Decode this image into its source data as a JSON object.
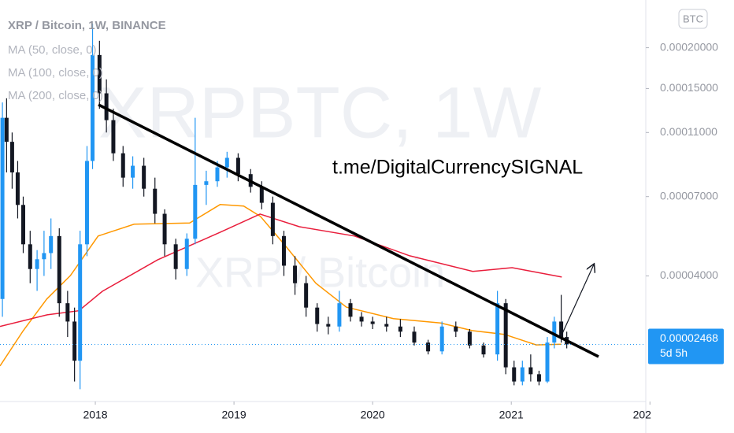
{
  "chart_data": {
    "type": "candlestick",
    "title": "XRP / Bitcoin, 1W, BINANCE",
    "watermark": "XRPBTC, 1W",
    "watermark_sub": "XRP / Bitcoin",
    "annotation": "t.me/DigitalCurrencySIGNAL",
    "currency": "BTC",
    "log_scale": true,
    "xlim": [
      2017.3125,
      2021.97
    ],
    "xticks": [
      2018,
      2019,
      2020,
      2021,
      {
        "value": 2022,
        "label": "202"
      }
    ],
    "ylim": [
      1.65e-05,
      0.00028
    ],
    "yticks": [
      {
        "value": 0.0002,
        "label": "0.00020000"
      },
      {
        "value": 0.00015,
        "label": "0.00015000"
      },
      {
        "value": 0.00011,
        "label": "0.00011000"
      },
      {
        "value": 7e-05,
        "label": "0.00007000"
      },
      {
        "value": 4e-05,
        "label": "0.00004000"
      }
    ],
    "up_color": "#2196f3",
    "down_color": "#131722",
    "candles": {
      "x": [
        2017.33,
        2017.36,
        2017.4,
        2017.44,
        2017.48,
        2017.53,
        2017.58,
        2017.63,
        2017.68,
        2017.74,
        2017.8,
        2017.85,
        2017.89,
        2017.94,
        2017.98,
        2018.03,
        2018.08,
        2018.13,
        2018.2,
        2018.27,
        2018.35,
        2018.43,
        2018.5,
        2018.58,
        2018.66,
        2018.72,
        2018.8,
        2018.88,
        2018.95,
        2019.03,
        2019.12,
        2019.2,
        2019.28,
        2019.36,
        2019.44,
        2019.52,
        2019.6,
        2019.68,
        2019.76,
        2019.84,
        2019.92,
        2020.0,
        2020.1,
        2020.2,
        2020.3,
        2020.4,
        2020.5,
        2020.6,
        2020.7,
        2020.8,
        2020.9,
        2020.96,
        2021.02,
        2021.08,
        2021.14,
        2021.2,
        2021.26,
        2021.31,
        2021.36,
        2021.4
      ],
      "open": [
        3.4e-05,
        0.000122,
        0.000103,
        8.3e-05,
        6.6e-05,
        5e-05,
        4.2e-05,
        4.5e-05,
        4.7e-05,
        5.3e-05,
        3.3e-05,
        2.9e-05,
        2.2e-05,
        5e-05,
        9e-05,
        0.00019,
        0.000145,
        0.00012,
        9.5e-05,
        8e-05,
        8.7e-05,
        7.4e-05,
        6.2e-05,
        5e-05,
        4.2e-05,
        5.2e-05,
        7.6e-05,
        7.8e-05,
        8.6e-05,
        9.2e-05,
        8.2e-05,
        7.5e-05,
        6.7e-05,
        5.3e-05,
        4.3e-05,
        3.8e-05,
        3.2e-05,
        2.85e-05,
        2.8e-05,
        3.3e-05,
        3e-05,
        2.9e-05,
        2.85e-05,
        2.8e-05,
        2.7e-05,
        2.5e-05,
        2.35e-05,
        2.8e-05,
        2.7e-05,
        2.45e-05,
        2.3e-05,
        3.3e-05,
        2.1e-05,
        1.9e-05,
        2.1e-05,
        2e-05,
        1.9e-05,
        2.5e-05,
        2.9e-05,
        2.6e-05
      ],
      "high": [
        0.000136,
        0.00014,
        0.00011,
        9e-05,
        7e-05,
        5.5e-05,
        4.8e-05,
        5.5e-05,
        6e-05,
        5.6e-05,
        3.6e-05,
        3.2e-05,
        5.5e-05,
        0.0001,
        0.000237,
        0.00021,
        0.00016,
        0.00013,
        0.0001,
        9.3e-05,
        9.2e-05,
        8e-05,
        6.4e-05,
        5.2e-05,
        5.4e-05,
        0.000122,
        8.4e-05,
        9e-05,
        9.6e-05,
        9.5e-05,
        8.5e-05,
        7.8e-05,
        7e-05,
        5.5e-05,
        4.6e-05,
        4e-05,
        3.3e-05,
        3e-05,
        3.6e-05,
        3.4e-05,
        3.1e-05,
        3e-05,
        3e-05,
        2.95e-05,
        2.8e-05,
        2.55e-05,
        2.9e-05,
        2.9e-05,
        2.75e-05,
        2.5e-05,
        3.6e-05,
        3.4e-05,
        2.2e-05,
        2.2e-05,
        2.3e-05,
        2.05e-05,
        2.6e-05,
        3e-05,
        3.5e-05,
        2.7e-05
      ],
      "low": [
        3e-05,
        8.3e-05,
        7.4e-05,
        6e-05,
        4.7e-05,
        3.8e-05,
        3.6e-05,
        4e-05,
        4.2e-05,
        3e-05,
        2.6e-05,
        1.9e-05,
        1.8e-05,
        4.6e-05,
        8.5e-05,
        0.00013,
        0.00011,
        9e-05,
        7.5e-05,
        7.4e-05,
        7e-05,
        5.8e-05,
        4.6e-05,
        3.9e-05,
        4e-05,
        5e-05,
        6.6e-05,
        7.5e-05,
        8e-05,
        7.8e-05,
        7.2e-05,
        6.4e-05,
        5e-05,
        4e-05,
        3.5e-05,
        3e-05,
        2.7e-05,
        2.65e-05,
        2.7e-05,
        2.9e-05,
        2.8e-05,
        2.75e-05,
        2.7e-05,
        2.6e-05,
        2.45e-05,
        2.3e-05,
        2.3e-05,
        2.6e-05,
        2.4e-05,
        2.25e-05,
        2.2e-05,
        2e-05,
        1.85e-05,
        1.85e-05,
        1.9e-05,
        1.85e-05,
        1.88e-05,
        2.4e-05,
        2.5e-05,
        2.4e-05
      ],
      "close": [
        0.000122,
        0.000103,
        8.3e-05,
        6.6e-05,
        5e-05,
        4.2e-05,
        4.5e-05,
        4.7e-05,
        5.3e-05,
        3.3e-05,
        2.9e-05,
        2.2e-05,
        5e-05,
        9e-05,
        0.00019,
        0.000145,
        0.00012,
        9.5e-05,
        8e-05,
        8.7e-05,
        7.4e-05,
        6.2e-05,
        5e-05,
        4.2e-05,
        5.2e-05,
        7.6e-05,
        7.8e-05,
        8.6e-05,
        9.2e-05,
        8.2e-05,
        7.5e-05,
        6.7e-05,
        5.3e-05,
        4.3e-05,
        3.8e-05,
        3.2e-05,
        2.85e-05,
        2.8e-05,
        3.3e-05,
        3e-05,
        2.9e-05,
        2.85e-05,
        2.8e-05,
        2.7e-05,
        2.5e-05,
        2.35e-05,
        2.8e-05,
        2.7e-05,
        2.45e-05,
        2.3e-05,
        3.3e-05,
        2.1e-05,
        1.9e-05,
        2.1e-05,
        2e-05,
        1.9e-05,
        2.5e-05,
        2.9e-05,
        2.6e-05,
        2.468e-05
      ]
    },
    "indicators": [
      {
        "label": "MA (50, close, 0)",
        "color": "#ff9800",
        "x": [
          2017.3125,
          2017.48,
          2017.65,
          2017.82,
          2018.02,
          2018.28,
          2018.68,
          2018.9,
          2019.07,
          2019.19,
          2019.36,
          2019.59,
          2019.81,
          2020.15,
          2020.49,
          2020.72,
          2020.95,
          2021.18,
          2021.36
        ],
        "values": [
          2.12e-05,
          2.72e-05,
          3.4e-05,
          4.01e-05,
          5.3e-05,
          5.76e-05,
          5.81e-05,
          6.62e-05,
          6.55e-05,
          6.09e-05,
          5.01e-05,
          3.8e-05,
          3.21e-05,
          2.96e-05,
          2.87e-05,
          2.72e-05,
          2.65e-05,
          2.46e-05,
          2.47e-05
        ]
      },
      {
        "label": "MA (100, close, 0)",
        "color": "#e91e3c",
        "x": [
          2017.3125,
          2017.653,
          2017.881,
          2018.051,
          2018.449,
          2018.903,
          2019.188,
          2019.472,
          2019.869,
          2020.267,
          2020.722,
          2021.006,
          2021.364
        ],
        "values": [
          2.8e-05,
          3.04e-05,
          3.13e-05,
          3.59e-05,
          4.48e-05,
          5.45e-05,
          6.19e-05,
          5.66e-05,
          5.3e-05,
          4.61e-05,
          4.13e-05,
          4.24e-05,
          3.97e-05
        ]
      },
      {
        "label": "MA (200, close, 0)"
      }
    ],
    "last_price": 2.468e-05,
    "countdown": "5d 5h"
  }
}
